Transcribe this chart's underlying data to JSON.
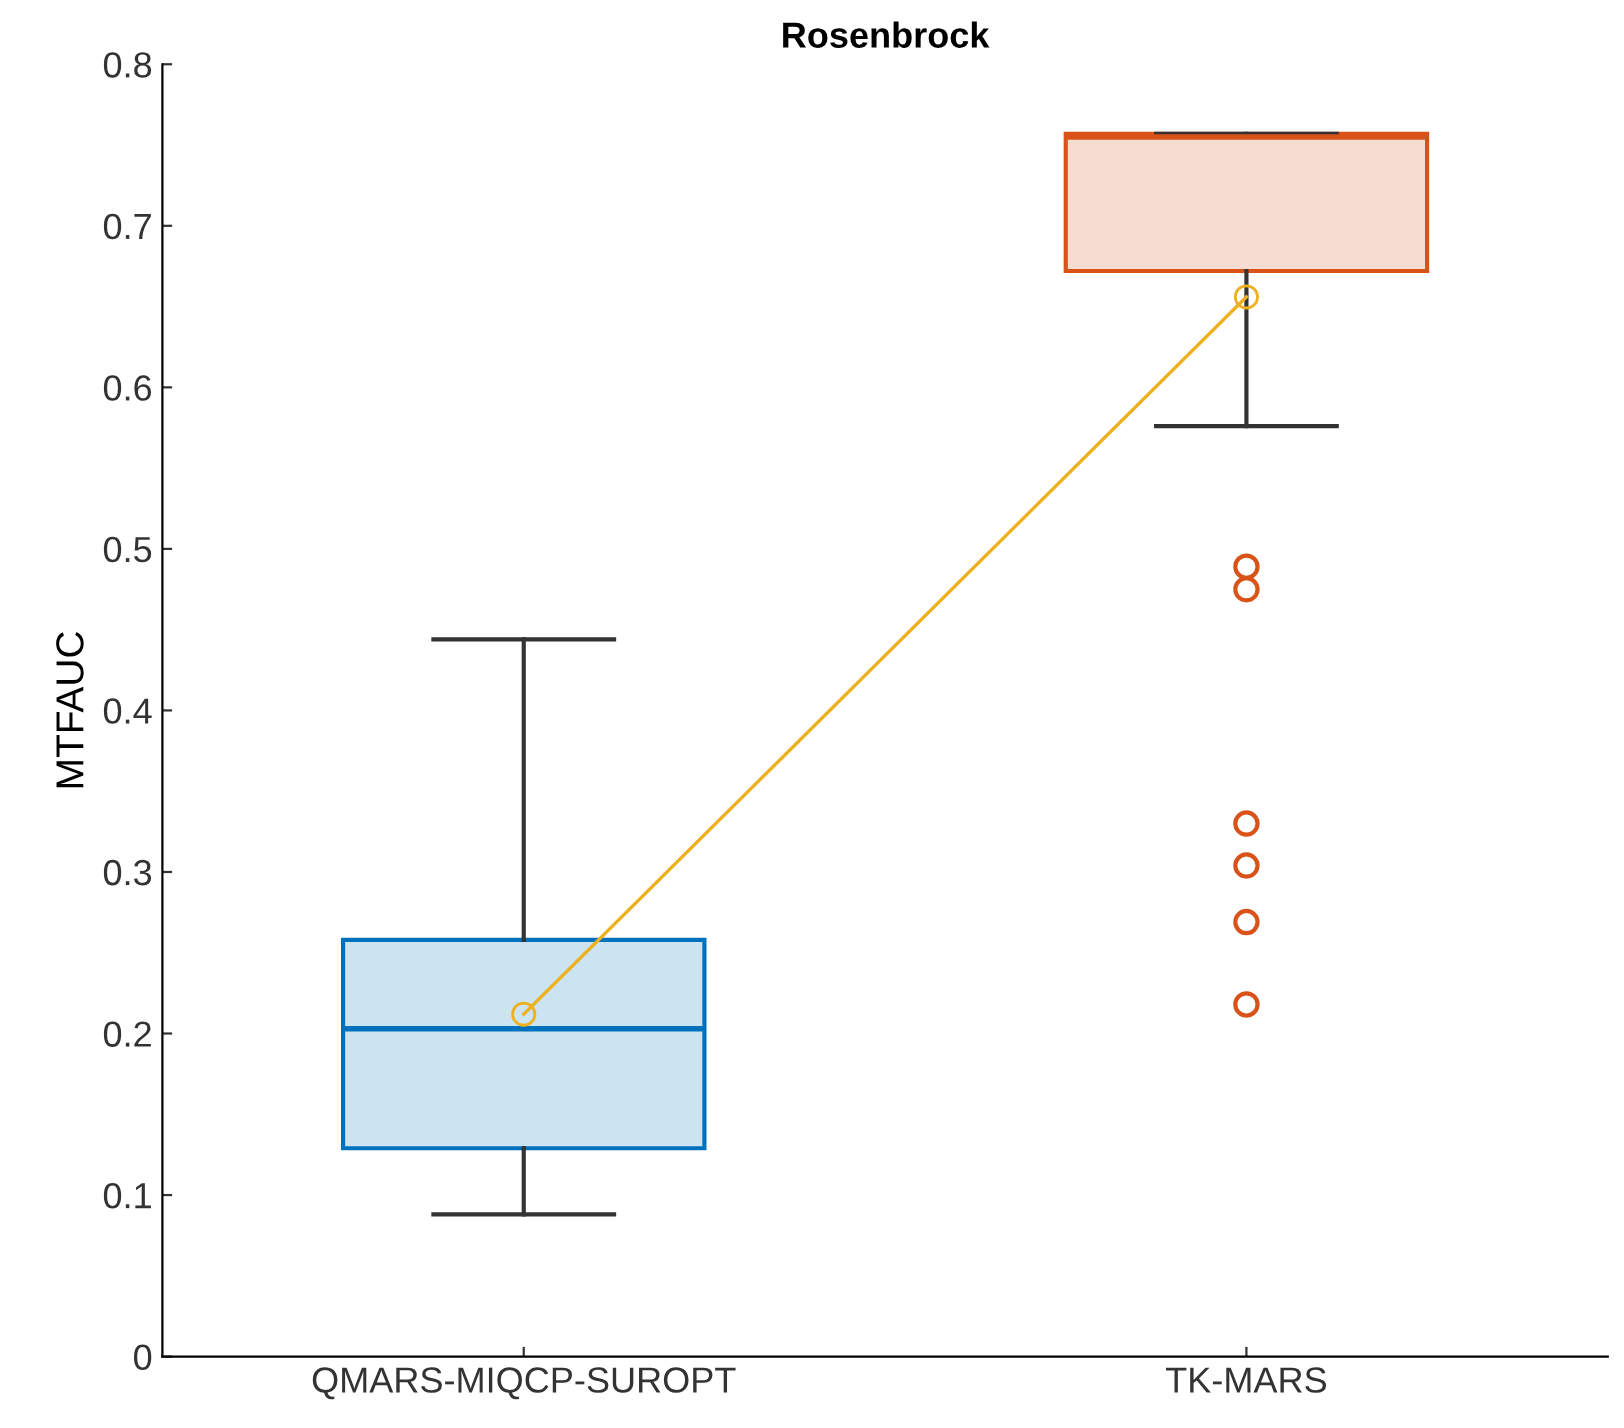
{
  "chart_data": {
    "type": "box",
    "title": "Rosenbrock",
    "ylabel": "MTFAUC",
    "categories": [
      "QMARS-MIQCP-SUROPT",
      "TK-MARS"
    ],
    "series": [
      {
        "colors": [
          "#0072bd",
          "#d95319"
        ],
        "boxes": [
          {
            "low": 0.088,
            "q1": 0.129,
            "median": 0.203,
            "q3": 0.258,
            "high": 0.444
          },
          {
            "low": 0.576,
            "q1": 0.672,
            "median": 0.755,
            "q3": 0.757,
            "high": 0.757,
            "outliers": [
              0.489,
              0.475,
              0.33,
              0.304,
              0.269,
              0.218
            ]
          }
        ]
      },
      {
        "type": "line",
        "color": "#edb120",
        "x": [
          "QMARS-MIQCP-SUROPT",
          "TK-MARS"
        ],
        "values": [
          0.212,
          0.656
        ],
        "marker": "circle"
      }
    ],
    "ylim": [
      0,
      0.8
    ],
    "yticks": [
      0,
      0.1,
      0.2,
      0.3,
      0.4,
      0.5,
      0.6,
      0.7,
      0.8
    ],
    "grid": false,
    "legend": false
  }
}
